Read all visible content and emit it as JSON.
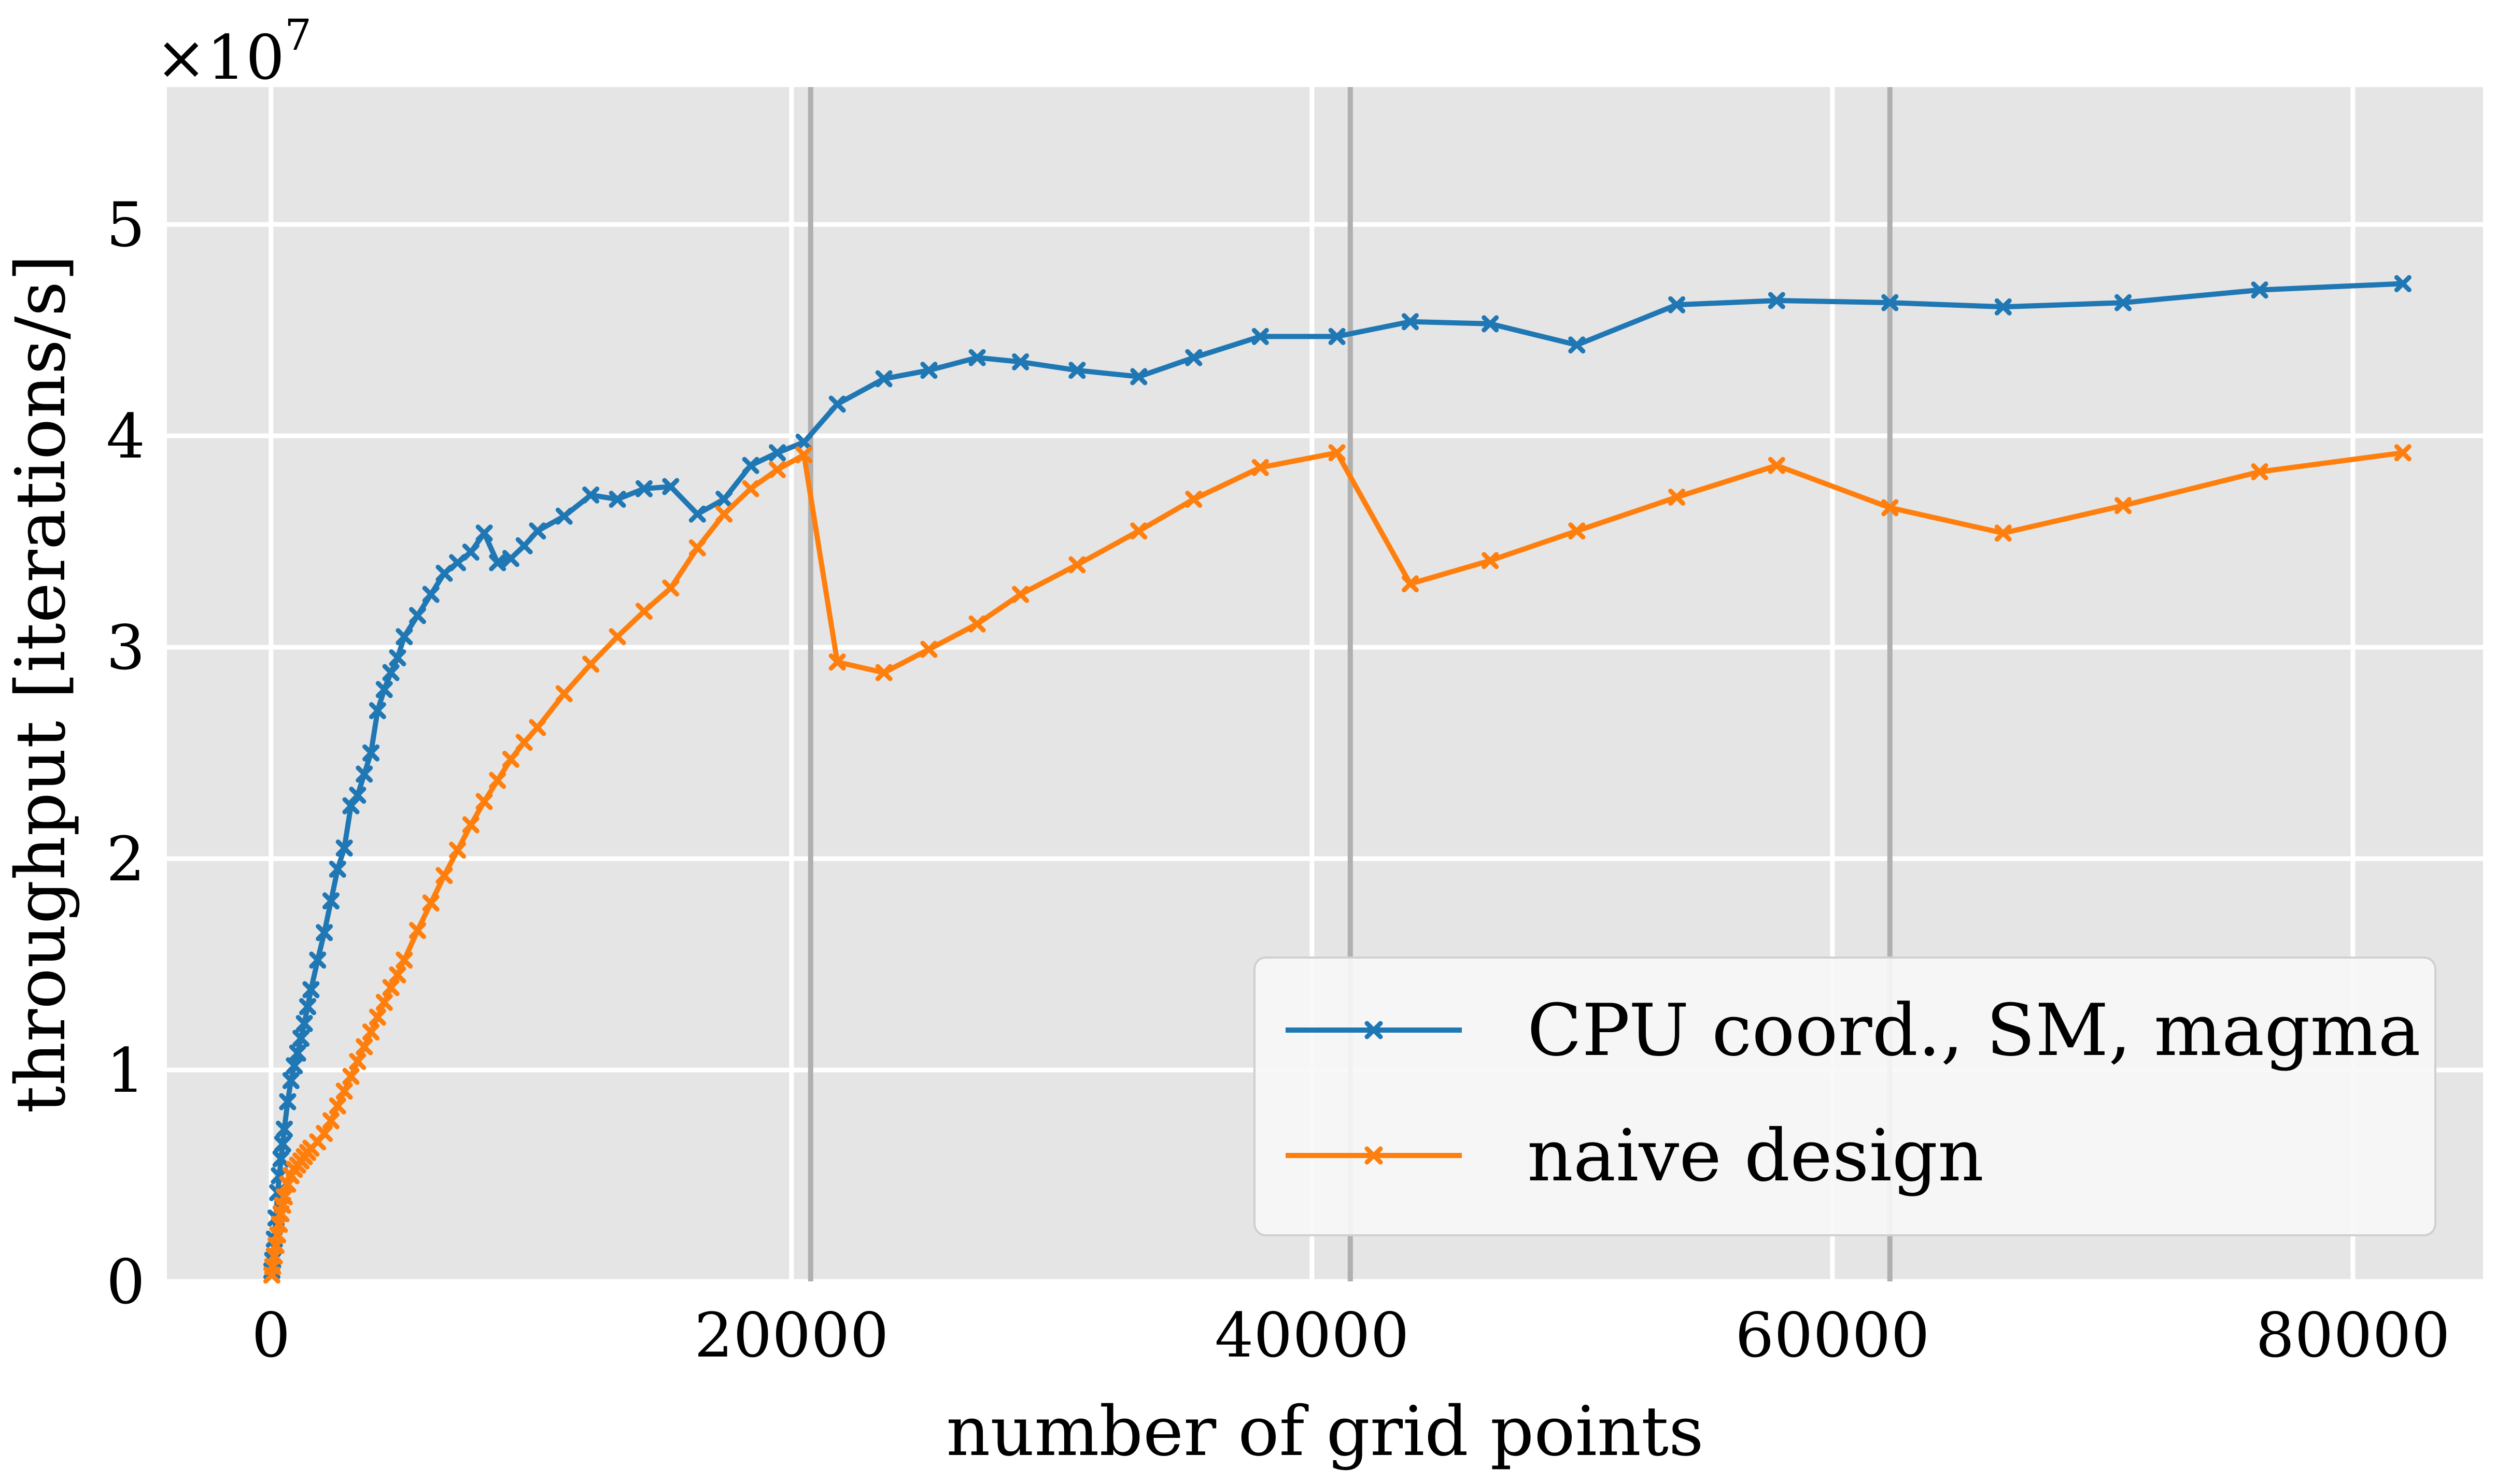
{
  "chart_data": {
    "type": "line",
    "xlabel": "number of grid points",
    "ylabel": "throughput [iterations/s]",
    "y_multiplier_label": "×10",
    "y_multiplier_exponent": "7",
    "xlim": [
      -4000,
      85000
    ],
    "ylim": [
      0,
      5.65
    ],
    "x_ticks": [
      0,
      20000,
      40000,
      60000,
      80000
    ],
    "x_tick_labels": [
      "0",
      "20000",
      "40000",
      "60000",
      "80000"
    ],
    "y_ticks": [
      0,
      1,
      2,
      3,
      4,
      5
    ],
    "y_tick_labels": [
      "0",
      "1",
      "2",
      "3",
      "4",
      "5"
    ],
    "grid": true,
    "vertical_reference_lines": [
      20736,
      41472,
      62208
    ],
    "legend_position": "lower-right",
    "series": [
      {
        "name": "CPU coord., SM, magma",
        "color": "#1f77b4",
        "marker": "x",
        "x": [
          32,
          64,
          128,
          192,
          256,
          320,
          384,
          448,
          512,
          640,
          768,
          896,
          1024,
          1152,
          1280,
          1408,
          1536,
          1792,
          2048,
          2304,
          2560,
          2816,
          3072,
          3328,
          3584,
          3840,
          4096,
          4352,
          4608,
          4864,
          5120,
          5632,
          6144,
          6656,
          7168,
          7680,
          8192,
          8704,
          9216,
          9728,
          10240,
          11264,
          12288,
          13312,
          14336,
          15360,
          16384,
          17408,
          18432,
          19456,
          20480,
          21760,
          23552,
          25280,
          27136,
          28800,
          30976,
          33344,
          35456,
          38016,
          40960,
          43776,
          46848,
          50176,
          54016,
          57856,
          62208,
          66560,
          71168,
          76416,
          81920
        ],
        "y": [
          0.05,
          0.1,
          0.2,
          0.3,
          0.42,
          0.5,
          0.58,
          0.65,
          0.72,
          0.85,
          0.95,
          1.02,
          1.08,
          1.15,
          1.22,
          1.3,
          1.38,
          1.52,
          1.65,
          1.8,
          1.95,
          2.05,
          2.25,
          2.3,
          2.4,
          2.5,
          2.7,
          2.8,
          2.88,
          2.95,
          3.05,
          3.15,
          3.25,
          3.35,
          3.4,
          3.45,
          3.54,
          3.4,
          3.42,
          3.48,
          3.55,
          3.62,
          3.72,
          3.7,
          3.75,
          3.76,
          3.63,
          3.7,
          3.86,
          3.92,
          3.97,
          4.15,
          4.27,
          4.31,
          4.37,
          4.35,
          4.31,
          4.28,
          4.37,
          4.47,
          4.47,
          4.54,
          4.53,
          4.43,
          4.62,
          4.64,
          4.63,
          4.61,
          4.63,
          4.69,
          4.72
        ]
      },
      {
        "name": "naive design",
        "color": "#ff7f0e",
        "marker": "x",
        "x": [
          32,
          64,
          128,
          192,
          256,
          320,
          384,
          448,
          512,
          640,
          768,
          896,
          1024,
          1152,
          1280,
          1408,
          1536,
          1792,
          2048,
          2304,
          2560,
          2816,
          3072,
          3328,
          3584,
          3840,
          4096,
          4352,
          4608,
          4864,
          5120,
          5632,
          6144,
          6656,
          7168,
          7680,
          8192,
          8704,
          9216,
          9728,
          10240,
          11264,
          12288,
          13312,
          14336,
          15360,
          16384,
          17408,
          18432,
          19456,
          20480,
          21760,
          23552,
          25280,
          27136,
          28800,
          30976,
          33344,
          35456,
          38016,
          40960,
          43776,
          46848,
          50176,
          54016,
          57856,
          62208,
          66560,
          71168,
          76416,
          81920
        ],
        "y": [
          0.03,
          0.07,
          0.12,
          0.17,
          0.22,
          0.27,
          0.32,
          0.36,
          0.4,
          0.46,
          0.5,
          0.53,
          0.55,
          0.57,
          0.59,
          0.61,
          0.63,
          0.66,
          0.7,
          0.76,
          0.83,
          0.9,
          0.97,
          1.04,
          1.11,
          1.18,
          1.25,
          1.32,
          1.39,
          1.45,
          1.52,
          1.66,
          1.79,
          1.92,
          2.04,
          2.16,
          2.27,
          2.37,
          2.47,
          2.55,
          2.62,
          2.78,
          2.92,
          3.05,
          3.17,
          3.28,
          3.47,
          3.63,
          3.75,
          3.84,
          3.91,
          2.93,
          2.88,
          2.99,
          3.11,
          3.25,
          3.39,
          3.55,
          3.7,
          3.85,
          3.92,
          3.3,
          3.41,
          3.55,
          3.71,
          3.86,
          3.66,
          3.54,
          3.67,
          3.83,
          3.92
        ]
      }
    ]
  }
}
